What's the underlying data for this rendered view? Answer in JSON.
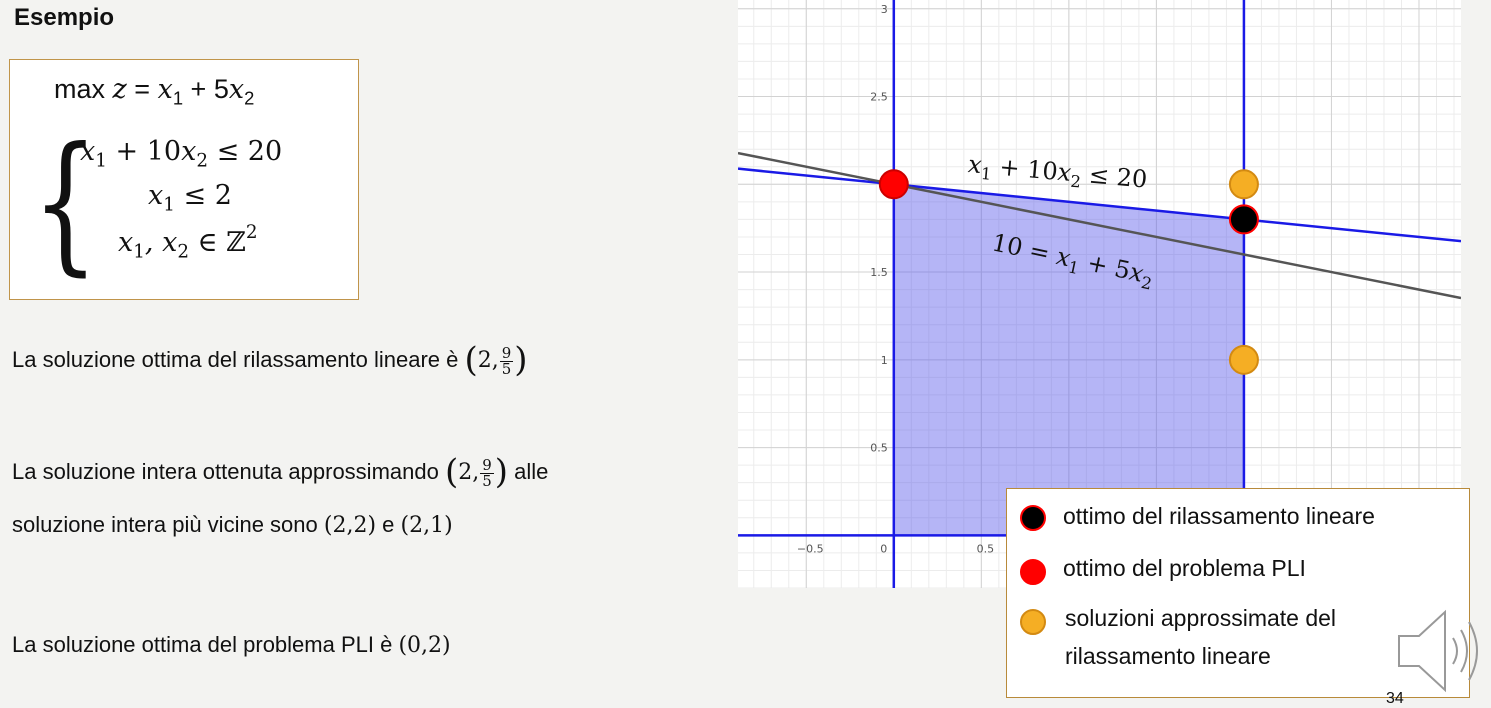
{
  "heading": "Esempio",
  "model": {
    "objective": {
      "op": "max",
      "z": "z",
      "eq": "=",
      "x1": "x",
      "s1": "1",
      "plus": "+ 5",
      "x2": "x",
      "s2": "2"
    },
    "c1": {
      "a": "x",
      "as": "1",
      "mid": " + 10",
      "b": "x",
      "bs": "2",
      "rhs": " ≤ 20"
    },
    "c2": {
      "a": "x",
      "as": "1",
      "rhs": " ≤ 2"
    },
    "c3": {
      "a": "x",
      "as": "1",
      "comma": ", ",
      "b": "x",
      "bs": "2",
      "set": " ∈ ℤ",
      "pow": "2"
    }
  },
  "paragraphs": {
    "p1": {
      "text": "La soluzione ottima del rilassamento lineare è",
      "pt_x": "2,",
      "num": "9",
      "den": "5"
    },
    "p2a": {
      "text": "La soluzione intera ottenuta approssimando",
      "pt_x": "2,",
      "num": "9",
      "den": "5",
      "tail": "alle"
    },
    "p2b": {
      "text": "soluzione intera più vicine sono",
      "pA": "(2,2)",
      "and": "e",
      "pB": "(2,1)"
    },
    "p3": {
      "text": "La soluzione ottima del problema PLI è",
      "pt": "(0,2)"
    }
  },
  "plot_labels": {
    "constraint": {
      "a": "x",
      "as": "1",
      "mid": " + 10",
      "b": "x",
      "bs": "2",
      "rhs": " ≤ 20"
    },
    "objective": {
      "lhs": "10 = ",
      "a": "x",
      "as": "1",
      "mid": " + 5",
      "b": "x",
      "bs": "2"
    }
  },
  "chart_data": {
    "type": "scatter",
    "x_ticks": [
      "−0.5",
      "0",
      "0.5"
    ],
    "y_ticks": [
      "3",
      "2.5",
      "1.5",
      "1",
      "0.5"
    ],
    "lines": [
      {
        "name": "x1 + 10x2 = 20",
        "color": "#1a1ae6",
        "points": [
          [
            -0.89,
            2.089
          ],
          [
            3.24,
            1.676
          ]
        ]
      },
      {
        "name": "x1 = 2",
        "color": "#1a1ae6",
        "points": [
          [
            2,
            -0.3
          ],
          [
            2,
            3.2
          ]
        ]
      },
      {
        "name": "x2 axis",
        "color": "#1a1ae6",
        "points": [
          [
            0,
            -0.3
          ],
          [
            0,
            3.2
          ]
        ]
      },
      {
        "name": "x1 axis",
        "color": "#1a1ae6",
        "points": [
          [
            -0.89,
            0
          ],
          [
            2.6,
            0
          ]
        ]
      },
      {
        "name": "10 = x1 + 5x2",
        "color": "#555555",
        "points": [
          [
            -0.89,
            2.178
          ],
          [
            3.24,
            1.352
          ]
        ]
      }
    ],
    "region": [
      [
        0,
        0
      ],
      [
        0,
        2
      ],
      [
        2,
        1.8
      ],
      [
        2,
        0
      ]
    ],
    "points": [
      {
        "x": 0,
        "y": 2,
        "kind": "ottimo PLI",
        "color": "#ff0000"
      },
      {
        "x": 2,
        "y": 1.8,
        "kind": "ottimo rilassamento",
        "color": "#000000"
      },
      {
        "x": 2,
        "y": 2,
        "kind": "approssimata",
        "color": "#f5ae24"
      },
      {
        "x": 2,
        "y": 1,
        "kind": "approssimata",
        "color": "#f5ae24"
      }
    ],
    "xlim": [
      -0.89,
      3.24
    ],
    "ylim": [
      -0.3,
      3.05
    ]
  },
  "legend": {
    "items": [
      {
        "label": "ottimo del rilassamento lineare",
        "color": "#000000",
        "border": "#ff0000"
      },
      {
        "label": "ottimo del problema PLI",
        "color": "#ff0000",
        "border": "#ff0000"
      },
      {
        "label": "soluzioni approssimate del",
        "label2": "rilassamento lineare",
        "color": "#f5ae24",
        "border": "#d38a12"
      }
    ]
  },
  "page_number": "34",
  "icons": {
    "speaker": "speaker-icon"
  }
}
